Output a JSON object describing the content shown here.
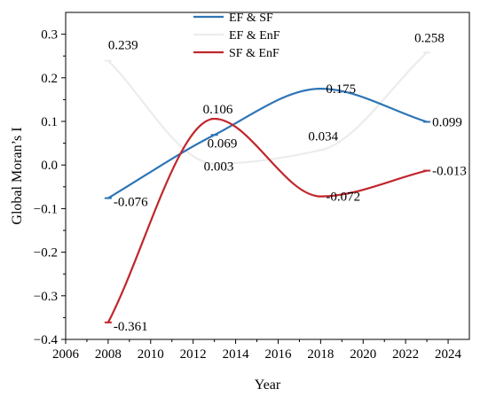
{
  "chart_data": {
    "type": "line",
    "xlabel": "Year",
    "ylabel": "Global Moran’s I",
    "xlim": [
      2006,
      2025
    ],
    "ylim": [
      -0.4,
      0.35
    ],
    "xticks": [
      2006,
      2008,
      2010,
      2012,
      2014,
      2016,
      2018,
      2020,
      2022,
      2024
    ],
    "yticks": [
      -0.4,
      -0.3,
      -0.2,
      -0.1,
      0.0,
      0.1,
      0.2,
      0.3
    ],
    "ytick_labels": [
      "−0.4",
      "−0.3",
      "−0.2",
      "−0.1",
      "0.0",
      "0.1",
      "0.2",
      "0.3"
    ],
    "grid": false,
    "legend_position": "top-center",
    "x": [
      2008,
      2013,
      2018,
      2023
    ],
    "series": [
      {
        "name": "EF & SF",
        "color": "#2e75b6",
        "values": [
          -0.076,
          0.069,
          0.175,
          0.099
        ],
        "labels": [
          "-0.076",
          "0.069",
          "0.175",
          "0.099"
        ]
      },
      {
        "name": "EF & EnF",
        "color": "#ececec",
        "values": [
          0.239,
          0.003,
          0.034,
          0.258
        ],
        "labels": [
          "0.239",
          "0.003",
          "0.034",
          "0.258"
        ]
      },
      {
        "name": "SF & EnF",
        "color": "#c0272d",
        "values": [
          -0.361,
          0.106,
          -0.072,
          -0.013
        ],
        "labels": [
          "-0.361",
          "0.106",
          "-0.072",
          "-0.013"
        ]
      }
    ]
  }
}
